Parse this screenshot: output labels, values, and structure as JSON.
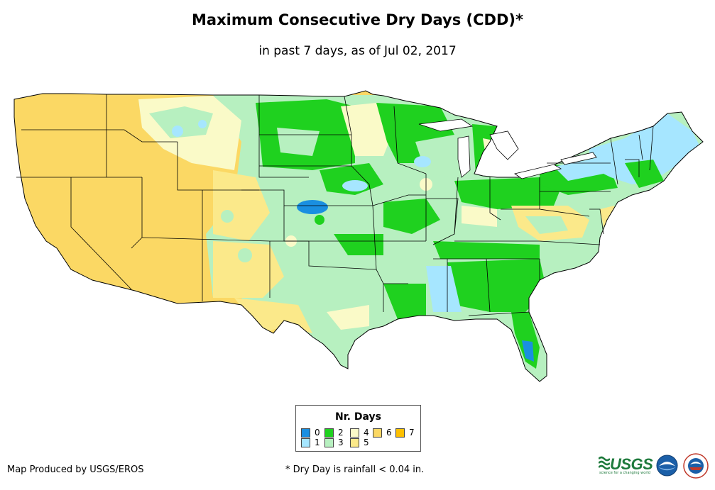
{
  "title": "Maximum Consecutive Dry Days (CDD)*",
  "subtitle": "in past 7 days, as of Jul 02, 2017",
  "legend": {
    "title": "Nr. Days",
    "items": [
      {
        "label": "0",
        "color": "#1a8fe0"
      },
      {
        "label": "1",
        "color": "#a6e6ff"
      },
      {
        "label": "2",
        "color": "#1fd11f"
      },
      {
        "label": "3",
        "color": "#b7f0c0"
      },
      {
        "label": "4",
        "color": "#fafac8"
      },
      {
        "label": "5",
        "color": "#fbe98a"
      },
      {
        "label": "6",
        "color": "#fbd864"
      },
      {
        "label": "7",
        "color": "#fec000"
      }
    ]
  },
  "footer": {
    "producer": "Map Produced by USGS/EROS",
    "note": "* Dry Day is rainfall < 0.04 in."
  },
  "logos": {
    "usgs_text": "USGS",
    "usgs_tagline": "science for a changing world"
  },
  "map": {
    "region": "Contiguous United States",
    "colors": {
      "border": "#000000",
      "background": "#ffffff"
    }
  }
}
